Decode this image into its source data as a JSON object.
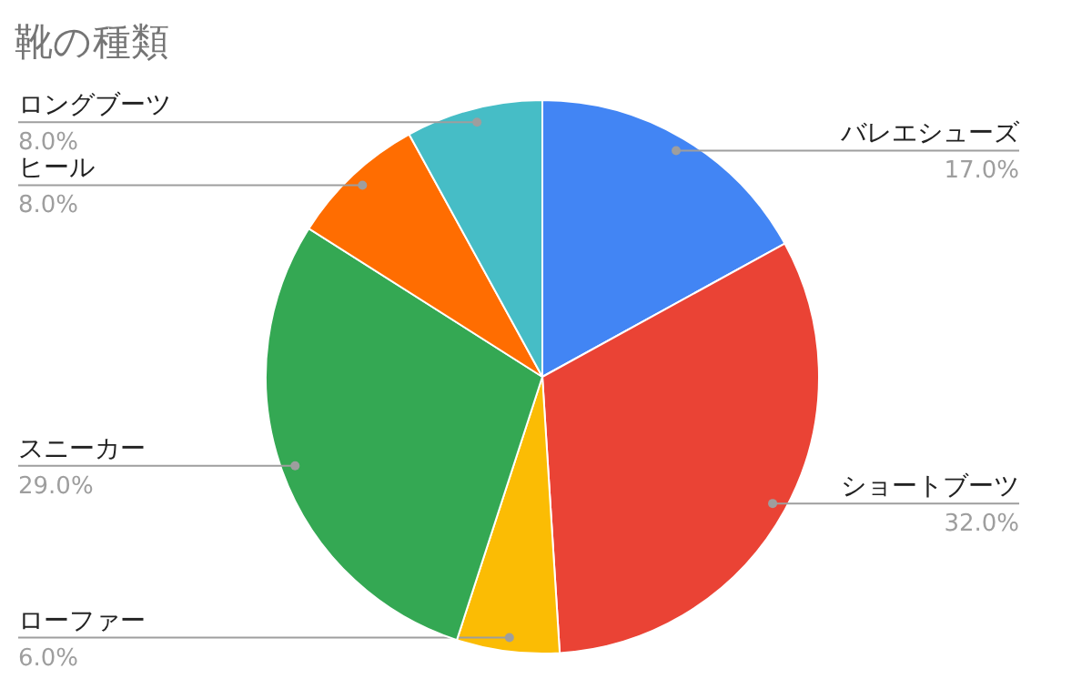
{
  "chart_data": {
    "type": "pie",
    "title": "靴の種類",
    "categories": [
      "バレエシューズ",
      "ショートブーツ",
      "ローファー",
      "スニーカー",
      "ヒール",
      "ロングブーツ"
    ],
    "values": [
      17,
      32,
      6,
      29,
      8,
      8
    ],
    "value_labels": [
      "17.0%",
      "32.0%",
      "6.0%",
      "29.0%",
      "8.0%",
      "8.0%"
    ],
    "colors": [
      "#4285f4",
      "#ea4335",
      "#fbbc04",
      "#34a853",
      "#ff6d01",
      "#46bdc6"
    ]
  }
}
